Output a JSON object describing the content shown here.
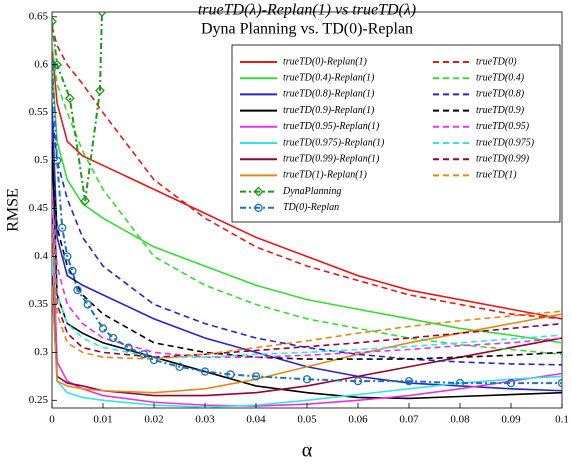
{
  "chart_data": {
    "type": "line",
    "title": "trueTD(λ)-Replan(1) vs trueTD(λ)",
    "subtitle": "Dyna Planning vs. TD(0)-Replan",
    "xlabel": "α",
    "ylabel": "RMSE",
    "xlim": [
      0,
      0.1
    ],
    "ylim": [
      0.242,
      0.655
    ],
    "xticks": [
      0,
      0.01,
      0.02,
      0.03,
      0.04,
      0.05,
      0.06,
      0.07,
      0.08,
      0.09,
      0.1
    ],
    "yticks": [
      0.25,
      0.3,
      0.35,
      0.4,
      0.45,
      0.5,
      0.55,
      0.6,
      0.65
    ],
    "grid": false,
    "legend": "upper right",
    "x": [
      0,
      0.001,
      0.003,
      0.006,
      0.01,
      0.02,
      0.03,
      0.04,
      0.05,
      0.06,
      0.07,
      0.08,
      0.09,
      0.1
    ],
    "series": [
      {
        "name": "trueTD(0)-Replan(1)",
        "color": "#e61919",
        "style": "solid",
        "values": [
          0.62,
          0.56,
          0.52,
          0.505,
          0.495,
          0.47,
          0.445,
          0.42,
          0.4,
          0.38,
          0.365,
          0.355,
          0.345,
          0.335
        ]
      },
      {
        "name": "trueTD(0.4)-Replan(1)",
        "color": "#33dd33",
        "style": "solid",
        "values": [
          0.6,
          0.52,
          0.48,
          0.455,
          0.44,
          0.41,
          0.39,
          0.37,
          0.355,
          0.345,
          0.335,
          0.325,
          0.318,
          0.31
        ]
      },
      {
        "name": "trueTD(0.8)-Replan(1)",
        "color": "#2626c8",
        "style": "solid",
        "values": [
          0.56,
          0.42,
          0.38,
          0.37,
          0.36,
          0.335,
          0.315,
          0.3,
          0.285,
          0.275,
          0.268,
          0.265,
          0.262,
          0.26
        ]
      },
      {
        "name": "trueTD(0.9)-Replan(1)",
        "color": "#000000",
        "style": "solid",
        "values": [
          0.52,
          0.36,
          0.33,
          0.32,
          0.31,
          0.295,
          0.28,
          0.265,
          0.258,
          0.253,
          0.252,
          0.254,
          0.256,
          0.258
        ]
      },
      {
        "name": "trueTD(0.95)-Replan(1)",
        "color": "#e633e6",
        "style": "solid",
        "values": [
          0.45,
          0.29,
          0.27,
          0.262,
          0.255,
          0.248,
          0.245,
          0.244,
          0.246,
          0.25,
          0.255,
          0.262,
          0.27,
          0.278
        ]
      },
      {
        "name": "trueTD(0.975)-Replan(1)",
        "color": "#33e6e6",
        "style": "solid",
        "values": [
          0.4,
          0.27,
          0.258,
          0.253,
          0.25,
          0.245,
          0.243,
          0.245,
          0.25,
          0.256,
          0.262,
          0.268,
          0.272,
          0.275
        ]
      },
      {
        "name": "trueTD(0.99)-Replan(1)",
        "color": "#990033",
        "style": "solid",
        "values": [
          0.38,
          0.275,
          0.268,
          0.265,
          0.26,
          0.255,
          0.255,
          0.258,
          0.265,
          0.275,
          0.285,
          0.295,
          0.305,
          0.315
        ]
      },
      {
        "name": "trueTD(1)-Replan(1)",
        "color": "#e08a1a",
        "style": "solid",
        "values": [
          0.37,
          0.27,
          0.265,
          0.262,
          0.26,
          0.258,
          0.262,
          0.272,
          0.285,
          0.298,
          0.31,
          0.32,
          0.33,
          0.34
        ]
      },
      {
        "name": "trueTD(0)",
        "color": "#e61919",
        "style": "dashed",
        "values": [
          0.64,
          0.62,
          0.6,
          0.58,
          0.55,
          0.48,
          0.44,
          0.41,
          0.39,
          0.375,
          0.36,
          0.35,
          0.34,
          0.335
        ]
      },
      {
        "name": "trueTD(0.4)",
        "color": "#33dd33",
        "style": "dashed",
        "values": [
          0.62,
          0.58,
          0.55,
          0.51,
          0.47,
          0.4,
          0.37,
          0.35,
          0.335,
          0.325,
          0.315,
          0.308,
          0.303,
          0.298
        ]
      },
      {
        "name": "trueTD(0.8)",
        "color": "#2626c8",
        "style": "dashed",
        "values": [
          0.55,
          0.5,
          0.46,
          0.42,
          0.39,
          0.35,
          0.33,
          0.315,
          0.305,
          0.298,
          0.293,
          0.29,
          0.288,
          0.287
        ]
      },
      {
        "name": "trueTD(0.9)",
        "color": "#000000",
        "style": "dashed",
        "values": [
          0.5,
          0.43,
          0.39,
          0.36,
          0.34,
          0.31,
          0.3,
          0.295,
          0.293,
          0.293,
          0.293,
          0.295,
          0.297,
          0.3
        ]
      },
      {
        "name": "trueTD(0.95)",
        "color": "#e633e6",
        "style": "dashed",
        "values": [
          0.47,
          0.39,
          0.35,
          0.33,
          0.315,
          0.3,
          0.295,
          0.295,
          0.297,
          0.3,
          0.303,
          0.307,
          0.31,
          0.315
        ]
      },
      {
        "name": "trueTD(0.975)",
        "color": "#33e6e6",
        "style": "dashed",
        "values": [
          0.45,
          0.36,
          0.33,
          0.315,
          0.305,
          0.295,
          0.295,
          0.298,
          0.3,
          0.303,
          0.306,
          0.31,
          0.314,
          0.318
        ]
      },
      {
        "name": "trueTD(0.99)",
        "color": "#990033",
        "style": "dashed",
        "values": [
          0.44,
          0.35,
          0.32,
          0.305,
          0.3,
          0.295,
          0.298,
          0.302,
          0.306,
          0.31,
          0.315,
          0.32,
          0.325,
          0.33
        ]
      },
      {
        "name": "trueTD(1)",
        "color": "#e08a1a",
        "style": "dashed",
        "values": [
          0.43,
          0.34,
          0.31,
          0.3,
          0.295,
          0.293,
          0.298,
          0.305,
          0.312,
          0.32,
          0.327,
          0.333,
          0.338,
          0.343
        ]
      },
      {
        "name": "DynaPlanning",
        "color": "#1a991a",
        "style": "dashdot",
        "marker": "diamond",
        "x": [
          0,
          0.001,
          0.0035,
          0.0065,
          0.0094,
          0.0098
        ],
        "values": [
          0.645,
          0.6,
          0.565,
          0.458,
          0.573,
          0.655
        ]
      },
      {
        "name": "TD(0)-Replan",
        "color": "#1a73b3",
        "style": "dashdot",
        "marker": "circle",
        "x": [
          0,
          0.001,
          0.002,
          0.003,
          0.004,
          0.005,
          0.007,
          0.01,
          0.012,
          0.015,
          0.018,
          0.02,
          0.025,
          0.03,
          0.035,
          0.04,
          0.05,
          0.06,
          0.07,
          0.08,
          0.09,
          0.1
        ],
        "values": [
          0.6,
          0.5,
          0.43,
          0.4,
          0.385,
          0.365,
          0.35,
          0.325,
          0.315,
          0.305,
          0.298,
          0.292,
          0.285,
          0.28,
          0.277,
          0.275,
          0.272,
          0.27,
          0.27,
          0.268,
          0.268,
          0.268
        ]
      }
    ]
  }
}
